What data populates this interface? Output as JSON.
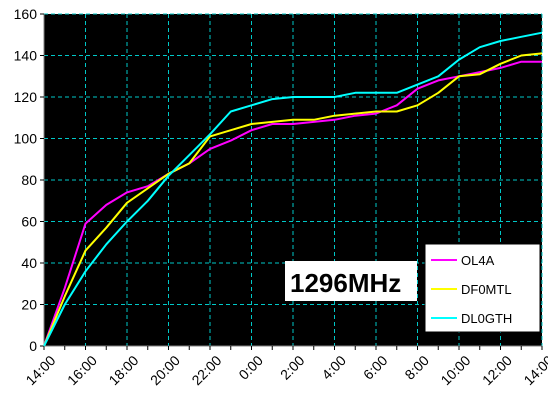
{
  "chart_data": {
    "type": "line",
    "x": [
      "14:00",
      "15:00",
      "16:00",
      "17:00",
      "18:00",
      "19:00",
      "20:00",
      "21:00",
      "22:00",
      "23:00",
      "0:00",
      "1:00",
      "2:00",
      "3:00",
      "4:00",
      "5:00",
      "6:00",
      "7:00",
      "8:00",
      "9:00",
      "10:00",
      "11:00",
      "12:00",
      "13:00",
      "14:00"
    ],
    "x_tick_labels": [
      "14:00",
      "16:00",
      "18:00",
      "20:00",
      "22:00",
      "0:00",
      "2:00",
      "4:00",
      "6:00",
      "8:00",
      "10:00",
      "12:00",
      "14:00"
    ],
    "ylim": [
      0,
      160
    ],
    "y_ticks": [
      0,
      20,
      40,
      60,
      80,
      100,
      120,
      140,
      160
    ],
    "grid": true,
    "legend_position": "bottom-right",
    "annotation": "1296MHz",
    "series": [
      {
        "name": "OL4A",
        "color": "#ff00ff",
        "values": [
          0,
          28,
          59,
          68,
          74,
          77,
          83,
          88,
          95,
          99,
          104,
          107,
          107,
          108,
          109,
          111,
          112,
          116,
          124,
          128,
          130,
          132,
          134,
          137,
          137
        ]
      },
      {
        "name": "DF0MTL",
        "color": "#ffff00",
        "values": [
          0,
          24,
          46,
          57,
          69,
          76,
          83,
          88,
          101,
          104,
          107,
          108,
          109,
          109,
          111,
          112,
          113,
          113,
          116,
          122,
          130,
          131,
          136,
          140,
          141
        ]
      },
      {
        "name": "DL0GTH",
        "color": "#00ffff",
        "values": [
          0,
          20,
          36,
          49,
          60,
          70,
          82,
          92,
          102,
          113,
          116,
          119,
          120,
          120,
          120,
          122,
          122,
          122,
          126,
          130,
          138,
          144,
          147,
          149,
          151
        ]
      }
    ]
  }
}
